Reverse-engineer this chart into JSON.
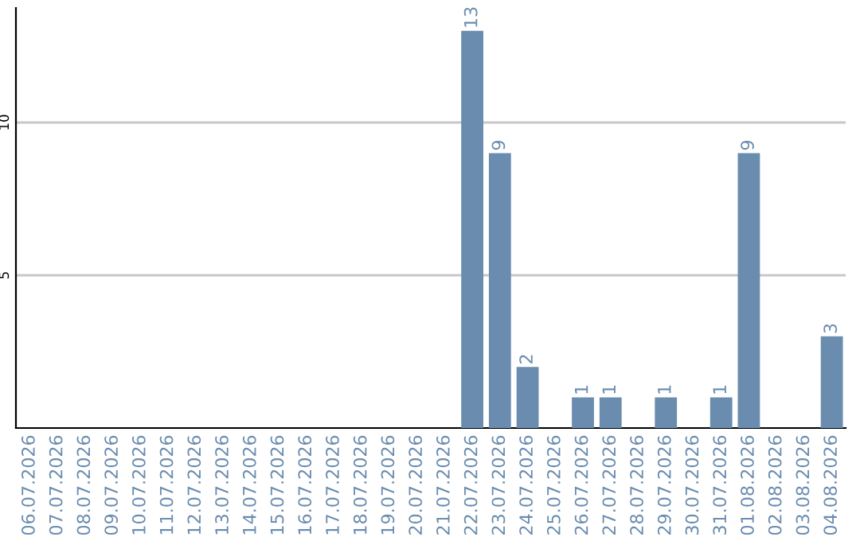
{
  "chart_data": {
    "type": "bar",
    "categories": [
      "06.07.2026",
      "07.07.2026",
      "08.07.2026",
      "09.07.2026",
      "10.07.2026",
      "11.07.2026",
      "12.07.2026",
      "13.07.2026",
      "14.07.2026",
      "15.07.2026",
      "16.07.2026",
      "17.07.2026",
      "18.07.2026",
      "19.07.2026",
      "20.07.2026",
      "21.07.2026",
      "22.07.2026",
      "23.07.2026",
      "24.07.2026",
      "25.07.2026",
      "26.07.2026",
      "27.07.2026",
      "28.07.2026",
      "29.07.2026",
      "30.07.2026",
      "31.07.2026",
      "01.08.2026",
      "02.08.2026",
      "03.08.2026",
      "04.08.2026"
    ],
    "values": [
      0,
      0,
      0,
      0,
      0,
      0,
      0,
      0,
      0,
      0,
      0,
      0,
      0,
      0,
      0,
      0,
      13,
      9,
      2,
      0,
      1,
      1,
      0,
      1,
      0,
      1,
      9,
      0,
      0,
      3
    ],
    "value_labels": [
      null,
      null,
      null,
      null,
      null,
      null,
      null,
      null,
      null,
      null,
      null,
      null,
      null,
      null,
      null,
      null,
      "13",
      "9",
      "2",
      null,
      "1",
      "1",
      null,
      "1",
      null,
      "1",
      "9",
      null,
      null,
      "3"
    ],
    "color": "#6a8caf",
    "ylim": [
      0,
      13.75
    ],
    "yticks": [
      5,
      10
    ],
    "grid": "y"
  }
}
